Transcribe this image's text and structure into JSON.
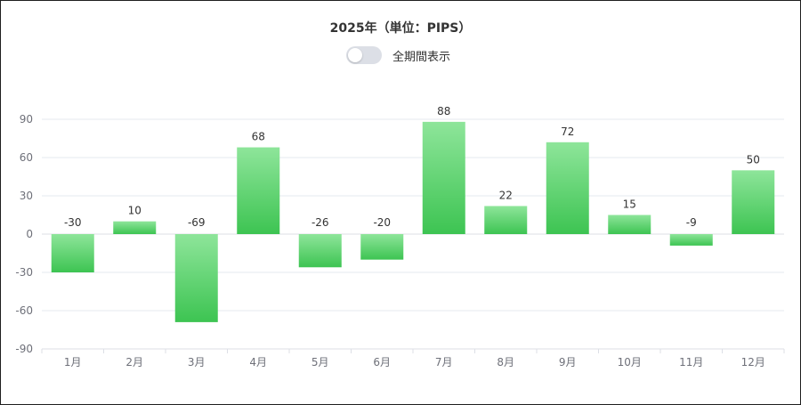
{
  "title": "2025年（単位：PIPS）",
  "toggle": {
    "label": "全期間表示",
    "checked": false
  },
  "colors": {
    "bar_top": "#8ee59a",
    "bar_bottom": "#3dc452",
    "grid": "#e6e9ef",
    "axis": "#dcdfe6"
  },
  "chart_data": {
    "type": "bar",
    "title": "2025年（単位：PIPS）",
    "categories": [
      "1月",
      "2月",
      "3月",
      "4月",
      "5月",
      "6月",
      "7月",
      "8月",
      "9月",
      "10月",
      "11月",
      "12月"
    ],
    "values": [
      -30,
      10,
      -69,
      68,
      -26,
      -20,
      88,
      22,
      72,
      15,
      -9,
      50
    ],
    "ylim": [
      -90,
      90
    ],
    "yticks": [
      90,
      60,
      30,
      0,
      -30,
      -60,
      -90
    ],
    "grid": true,
    "data_labels": true
  }
}
